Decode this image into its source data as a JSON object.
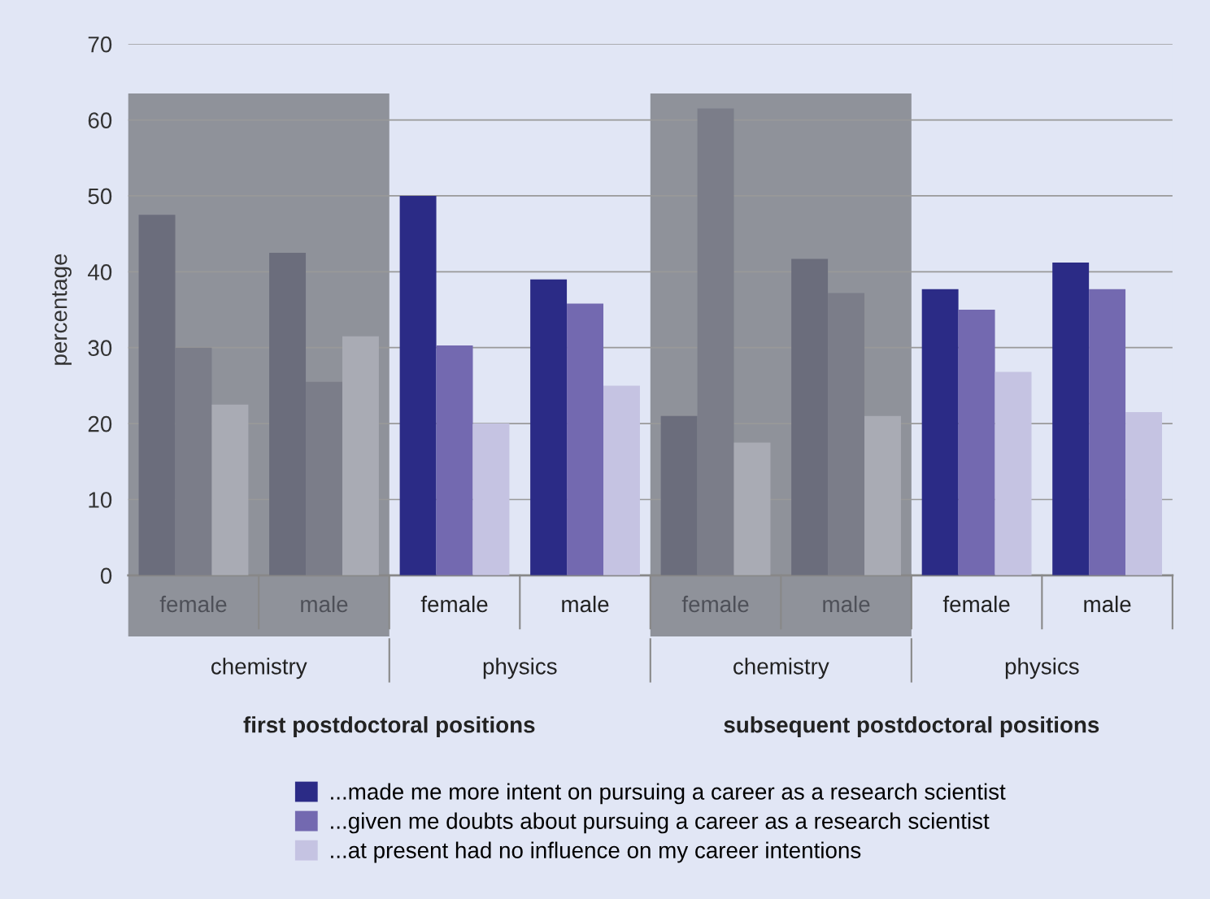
{
  "chart_data": {
    "type": "bar",
    "ylabel": "percentage",
    "categories": [
      "female",
      "male",
      "female",
      "male",
      "female",
      "male",
      "female",
      "male"
    ],
    "series": [
      {
        "name": "...made me more intent on pursuing a career as a research scientist",
        "color": "#2b2b86",
        "colors": [
          "#6b6d7c",
          "#6b6d7c",
          "#2b2b86",
          "#2b2b86",
          "#6b6d7c",
          "#6b6d7c",
          "#2b2b86",
          "#2b2b86"
        ],
        "values": [
          47.5,
          42.5,
          50,
          39,
          21,
          41.7,
          37.7,
          41.2
        ]
      },
      {
        "name": "...given me doubts about pursuing a career as a research scientist",
        "color": "#7369b0",
        "colors": [
          "#7b7d89",
          "#7b7d89",
          "#7369b0",
          "#7369b0",
          "#7b7d89",
          "#7b7d89",
          "#7369b0",
          "#7369b0"
        ],
        "values": [
          30,
          25.5,
          30.3,
          35.8,
          61.5,
          37.2,
          35,
          37.7
        ]
      },
      {
        "name": "...at present had no influence on my career intentions",
        "color": "#c5c3e2",
        "colors": [
          "#a9abb4",
          "#a9abb4",
          "#c5c3e2",
          "#c5c3e2",
          "#a9abb4",
          "#a9abb4",
          "#c5c3e2",
          "#c5c3e2"
        ],
        "values": [
          22.5,
          31.5,
          20,
          25,
          17.5,
          21,
          26.8,
          21.5
        ]
      }
    ],
    "annotations": [
      "chemistry",
      "physics",
      "chemistry",
      "physics",
      "first postdoctoral positions",
      "subsequent postdoctoral positions"
    ],
    "ylim": [
      0,
      70
    ],
    "yticks": [
      0,
      10,
      20,
      30,
      40,
      50,
      60,
      70
    ],
    "grid": "y",
    "legend": "bottom"
  }
}
